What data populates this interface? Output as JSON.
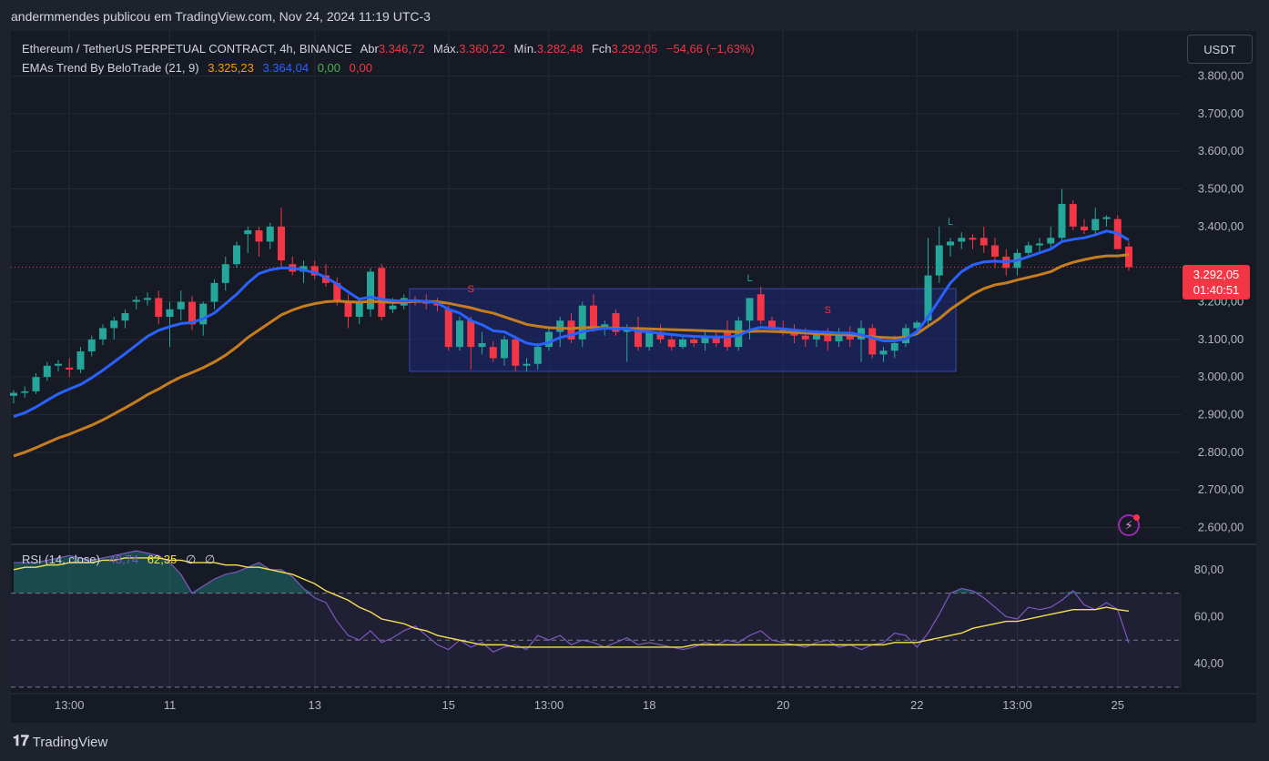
{
  "topbar": {
    "text": "andermmendes publicou em TradingView.com, Nov 24, 2024 11:19 UTC-3"
  },
  "legend": {
    "symbol": "Ethereum / TetherUS PERPETUAL CONTRACT, 4h, BINANCE",
    "open_label": "Abr",
    "open_value": "3.346,72",
    "high_label": "Máx.",
    "high_value": "3.360,22",
    "low_label": "Mín.",
    "low_value": "3.282,48",
    "close_label": "Fch",
    "close_value": "3.292,05",
    "change": "−54,66 (−1,63%)",
    "indicator": "EMAs Trend By BeloTrade (21, 9)",
    "ema21": "3.325,23",
    "ema9": "3.364,04",
    "v1": "0,00",
    "v2": "0,00"
  },
  "rsi_legend": {
    "label": "RSI (14, close)",
    "rsi": "48,74",
    "ma": "62,35",
    "e1": "∅",
    "e2": "∅"
  },
  "currency_button": "USDT",
  "price_tag": {
    "price": "3.292,05",
    "countdown": "01:40:51"
  },
  "brand": "TradingView",
  "colors": {
    "up": "#26a69a",
    "down": "#f23645",
    "ema21": "#c77d1e",
    "ema9": "#2962ff",
    "rsi": "#7e57c2",
    "rsi_ma": "#f5e050",
    "box": "#1e2a78"
  },
  "chart_data": [
    {
      "type": "candlestick",
      "title": "Ethereum / TetherUS PERPETUAL CONTRACT, 4h, BINANCE",
      "ylim": [
        2560,
        3920
      ],
      "y_ticks": [
        3800,
        3700,
        3600,
        3500,
        3400,
        3200,
        3100,
        3000,
        2900,
        2800,
        2700,
        2600
      ],
      "y_tick_labels": [
        "3.800,00",
        "3.700,00",
        "3.600,00",
        "3.500,00",
        "3.400,00",
        "3.200,00",
        "3.100,00",
        "3.000,00",
        "2.900,00",
        "2.800,00",
        "2.700,00",
        "2.600,00"
      ],
      "x_ticks": [
        {
          "i": 5,
          "label": "13:00"
        },
        {
          "i": 14,
          "label": "11"
        },
        {
          "i": 27,
          "label": "13"
        },
        {
          "i": 39,
          "label": "15"
        },
        {
          "i": 48,
          "label": "13:00"
        },
        {
          "i": 57,
          "label": "18"
        },
        {
          "i": 69,
          "label": "20"
        },
        {
          "i": 81,
          "label": "22"
        },
        {
          "i": 90,
          "label": "13:00"
        },
        {
          "i": 99,
          "label": "25"
        }
      ],
      "candles": [
        [
          2950,
          2965,
          2930,
          2958
        ],
        [
          2958,
          2975,
          2945,
          2962
        ],
        [
          2962,
          3010,
          2955,
          3000
        ],
        [
          3000,
          3040,
          2990,
          3030
        ],
        [
          3030,
          3045,
          3015,
          3035
        ],
        [
          3025,
          3050,
          3000,
          3020
        ],
        [
          3020,
          3080,
          3010,
          3068
        ],
        [
          3068,
          3110,
          3055,
          3100
        ],
        [
          3100,
          3140,
          3085,
          3130
        ],
        [
          3130,
          3160,
          3100,
          3150
        ],
        [
          3150,
          3180,
          3130,
          3170
        ],
        [
          3200,
          3215,
          3180,
          3205
        ],
        [
          3205,
          3225,
          3190,
          3210
        ],
        [
          3210,
          3230,
          3140,
          3160
        ],
        [
          3160,
          3200,
          3080,
          3180
        ],
        [
          3180,
          3230,
          3150,
          3200
        ],
        [
          3200,
          3215,
          3125,
          3140
        ],
        [
          3140,
          3200,
          3110,
          3195
        ],
        [
          3200,
          3260,
          3180,
          3250
        ],
        [
          3250,
          3320,
          3230,
          3300
        ],
        [
          3300,
          3360,
          3290,
          3350
        ],
        [
          3380,
          3400,
          3330,
          3390
        ],
        [
          3390,
          3400,
          3320,
          3360
        ],
        [
          3360,
          3410,
          3340,
          3400
        ],
        [
          3400,
          3450,
          3290,
          3310
        ],
        [
          3300,
          3320,
          3270,
          3280
        ],
        [
          3280,
          3310,
          3250,
          3295
        ],
        [
          3295,
          3310,
          3260,
          3270
        ],
        [
          3270,
          3300,
          3240,
          3250
        ],
        [
          3250,
          3265,
          3190,
          3200
        ],
        [
          3200,
          3220,
          3130,
          3160
        ],
        [
          3160,
          3210,
          3140,
          3200
        ],
        [
          3180,
          3290,
          3160,
          3280
        ],
        [
          3290,
          3300,
          3150,
          3160
        ],
        [
          3180,
          3210,
          3170,
          3190
        ],
        [
          3190,
          3220,
          3180,
          3210
        ],
        [
          3205,
          3215,
          3190,
          3200
        ],
        [
          3200,
          3220,
          3180,
          3195
        ],
        [
          3195,
          3210,
          3175,
          3190
        ],
        [
          3180,
          3190,
          3070,
          3080
        ],
        [
          3080,
          3160,
          3070,
          3150
        ],
        [
          3150,
          3160,
          3020,
          3080
        ],
        [
          3080,
          3120,
          3060,
          3090
        ],
        [
          3080,
          3095,
          3040,
          3050
        ],
        [
          3050,
          3110,
          3030,
          3100
        ],
        [
          3100,
          3110,
          3015,
          3030
        ],
        [
          3030,
          3050,
          3015,
          3035
        ],
        [
          3035,
          3090,
          3020,
          3080
        ],
        [
          3080,
          3130,
          3070,
          3120
        ],
        [
          3120,
          3160,
          3080,
          3150
        ],
        [
          3150,
          3170,
          3090,
          3100
        ],
        [
          3100,
          3200,
          3080,
          3190
        ],
        [
          3190,
          3220,
          3120,
          3130
        ],
        [
          3130,
          3150,
          3110,
          3140
        ],
        [
          3170,
          3180,
          3110,
          3120
        ],
        [
          3120,
          3140,
          3040,
          3130
        ],
        [
          3130,
          3160,
          3070,
          3080
        ],
        [
          3080,
          3130,
          3070,
          3120
        ],
        [
          3120,
          3140,
          3090,
          3100
        ],
        [
          3100,
          3115,
          3070,
          3080
        ],
        [
          3080,
          3110,
          3075,
          3100
        ],
        [
          3100,
          3110,
          3080,
          3090
        ],
        [
          3090,
          3120,
          3070,
          3110
        ],
        [
          3110,
          3125,
          3080,
          3090
        ],
        [
          3120,
          3150,
          3070,
          3080
        ],
        [
          3080,
          3160,
          3070,
          3150
        ],
        [
          3150,
          3200,
          3100,
          3210
        ],
        [
          3220,
          3240,
          3140,
          3150
        ],
        [
          3150,
          3160,
          3120,
          3130
        ],
        [
          3130,
          3150,
          3110,
          3120
        ],
        [
          3120,
          3140,
          3090,
          3110
        ],
        [
          3110,
          3130,
          3080,
          3100
        ],
        [
          3100,
          3125,
          3080,
          3115
        ],
        [
          3115,
          3130,
          3070,
          3095
        ],
        [
          3095,
          3130,
          3080,
          3120
        ],
        [
          3120,
          3135,
          3080,
          3100
        ],
        [
          3100,
          3150,
          3040,
          3130
        ],
        [
          3130,
          3140,
          3050,
          3060
        ],
        [
          3060,
          3080,
          3040,
          3070
        ],
        [
          3070,
          3110,
          3050,
          3090
        ],
        [
          3090,
          3140,
          3080,
          3130
        ],
        [
          3130,
          3150,
          3120,
          3145
        ],
        [
          3150,
          3370,
          3130,
          3270
        ],
        [
          3270,
          3400,
          3250,
          3350
        ],
        [
          3350,
          3370,
          3320,
          3360
        ],
        [
          3360,
          3385,
          3340,
          3370
        ],
        [
          3370,
          3380,
          3340,
          3365
        ],
        [
          3370,
          3400,
          3330,
          3350
        ],
        [
          3350,
          3370,
          3290,
          3320
        ],
        [
          3320,
          3340,
          3270,
          3290
        ],
        [
          3290,
          3340,
          3270,
          3330
        ],
        [
          3330,
          3360,
          3320,
          3350
        ],
        [
          3350,
          3370,
          3330,
          3355
        ],
        [
          3355,
          3400,
          3340,
          3370
        ],
        [
          3370,
          3500,
          3360,
          3460
        ],
        [
          3460,
          3470,
          3390,
          3400
        ],
        [
          3400,
          3420,
          3380,
          3390
        ],
        [
          3390,
          3450,
          3380,
          3420
        ],
        [
          3420,
          3430,
          3400,
          3425
        ],
        [
          3420,
          3430,
          3340,
          3340
        ],
        [
          3346.72,
          3360.22,
          3282.48,
          3292.05
        ]
      ],
      "ema21": [
        2790,
        2800,
        2812,
        2825,
        2838,
        2848,
        2860,
        2872,
        2886,
        2902,
        2918,
        2935,
        2953,
        2968,
        2985,
        3000,
        3012,
        3025,
        3040,
        3058,
        3080,
        3105,
        3125,
        3145,
        3165,
        3178,
        3188,
        3195,
        3200,
        3202,
        3200,
        3199,
        3201,
        3200,
        3198,
        3199,
        3201,
        3201,
        3200,
        3196,
        3190,
        3184,
        3176,
        3170,
        3160,
        3150,
        3140,
        3135,
        3131,
        3130,
        3129,
        3131,
        3132,
        3131,
        3130,
        3129,
        3129,
        3128,
        3127,
        3126,
        3125,
        3124,
        3123,
        3122,
        3121,
        3120,
        3121,
        3122,
        3121,
        3120,
        3118,
        3117,
        3115,
        3114,
        3113,
        3112,
        3109,
        3107,
        3105,
        3104,
        3106,
        3115,
        3135,
        3155,
        3180,
        3200,
        3220,
        3235,
        3245,
        3250,
        3258,
        3265,
        3272,
        3280,
        3295,
        3305,
        3312,
        3318,
        3322,
        3322,
        3325.23
      ],
      "ema9": [
        2895,
        2905,
        2920,
        2938,
        2955,
        2968,
        2980,
        2998,
        3018,
        3040,
        3062,
        3085,
        3108,
        3124,
        3134,
        3142,
        3145,
        3155,
        3170,
        3195,
        3220,
        3250,
        3275,
        3285,
        3290,
        3290,
        3284,
        3278,
        3265,
        3247,
        3226,
        3207,
        3213,
        3207,
        3203,
        3202,
        3203,
        3201,
        3197,
        3180,
        3170,
        3150,
        3139,
        3123,
        3120,
        3105,
        3090,
        3085,
        3092,
        3105,
        3112,
        3120,
        3126,
        3130,
        3128,
        3128,
        3122,
        3120,
        3116,
        3113,
        3110,
        3108,
        3107,
        3106,
        3107,
        3110,
        3125,
        3132,
        3130,
        3128,
        3125,
        3122,
        3120,
        3119,
        3117,
        3117,
        3112,
        3104,
        3096,
        3096,
        3102,
        3120,
        3160,
        3205,
        3250,
        3280,
        3298,
        3306,
        3308,
        3306,
        3310,
        3320,
        3330,
        3340,
        3360,
        3366,
        3370,
        3378,
        3388,
        3382,
        3364.04
      ],
      "range_box": {
        "i_start": 35.5,
        "i_end": 84.5,
        "y_low": 3015,
        "y_high": 3235
      },
      "signals": [
        {
          "i": 41,
          "y": 3225,
          "text": "S",
          "color": "#f23645"
        },
        {
          "i": 66,
          "y": 3255,
          "text": "L",
          "color": "#26a69a"
        },
        {
          "i": 73,
          "y": 3170,
          "text": "S",
          "color": "#f23645"
        },
        {
          "i": 84,
          "y": 3405,
          "text": "L",
          "color": "#26a69a"
        }
      ],
      "last_price": 3292.05
    },
    {
      "type": "line",
      "title": "RSI (14, close)",
      "ylim": [
        28,
        90
      ],
      "y_ticks": [
        80,
        60,
        40
      ],
      "y_tick_labels": [
        "80,00",
        "60,00",
        "40,00"
      ],
      "bands": [
        70,
        50,
        30
      ],
      "rsi": [
        83,
        83,
        83,
        84,
        85,
        86,
        85,
        84,
        85,
        86,
        87,
        88,
        87,
        86,
        83,
        78,
        70,
        73,
        76,
        78,
        79,
        81,
        83,
        80,
        80,
        77,
        72,
        68,
        66,
        58,
        52,
        50,
        54,
        49,
        51,
        54,
        56,
        52,
        48,
        46,
        50,
        47,
        49,
        45,
        47,
        48,
        46,
        52,
        50,
        52,
        48,
        50,
        49,
        47,
        49,
        51,
        48,
        49,
        48,
        47,
        46,
        47,
        49,
        48,
        50,
        49,
        52,
        54,
        50,
        49,
        48,
        47,
        49,
        50,
        47,
        48,
        46,
        48,
        49,
        53,
        52,
        47,
        53,
        61,
        70,
        72,
        71,
        68,
        64,
        60,
        59,
        64,
        63,
        64,
        67,
        71,
        65,
        63,
        66,
        63,
        48.74
      ],
      "rsi_ma": [
        80,
        81,
        81,
        82,
        82,
        83,
        83,
        83,
        84,
        84,
        85,
        85,
        85,
        85,
        84,
        84,
        83,
        83,
        83,
        82,
        82,
        81,
        81,
        80,
        79,
        78,
        76,
        74,
        71,
        69,
        67,
        64,
        62,
        59,
        58,
        57,
        55,
        54,
        52,
        51,
        50,
        49,
        48,
        48,
        48,
        47,
        47,
        47,
        47,
        47,
        47,
        47,
        47,
        47,
        47,
        47,
        47,
        47,
        47,
        47,
        47,
        48,
        48,
        48,
        48,
        48,
        48,
        48,
        48,
        48,
        48,
        48,
        48,
        48,
        48,
        48,
        48,
        48,
        48,
        49,
        49,
        49,
        50,
        51,
        52,
        53,
        55,
        56,
        57,
        58,
        58,
        59,
        60,
        61,
        62,
        63,
        63,
        63,
        64,
        63,
        62.35
      ]
    }
  ]
}
